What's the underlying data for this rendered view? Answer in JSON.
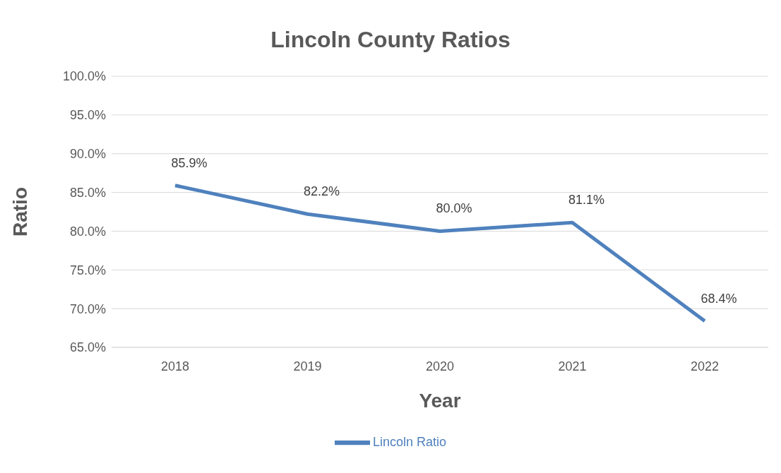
{
  "chart_data": {
    "type": "line",
    "title": "Lincoln County Ratios",
    "xlabel": "Year",
    "ylabel": "Ratio",
    "categories": [
      "2018",
      "2019",
      "2020",
      "2021",
      "2022"
    ],
    "series": [
      {
        "name": "Lincoln Ratio",
        "color": "#4f81bd",
        "values": [
          85.9,
          82.2,
          80.0,
          81.1,
          68.4
        ],
        "value_labels": [
          "85.9%",
          "82.2%",
          "80.0%",
          "81.1%",
          "68.4%"
        ]
      }
    ],
    "ylim": [
      65,
      100
    ],
    "yticks": [
      {
        "value": 65,
        "label": "65.0%"
      },
      {
        "value": 70,
        "label": "70.0%"
      },
      {
        "value": 75,
        "label": "75.0%"
      },
      {
        "value": 80,
        "label": "80.0%"
      },
      {
        "value": 85,
        "label": "85.0%"
      },
      {
        "value": 90,
        "label": "90.0%"
      },
      {
        "value": 95,
        "label": "95.0%"
      },
      {
        "value": 100,
        "label": "100.0%"
      }
    ],
    "grid": "y",
    "legend": "bottom",
    "marker": "none",
    "line_style": "solid"
  }
}
